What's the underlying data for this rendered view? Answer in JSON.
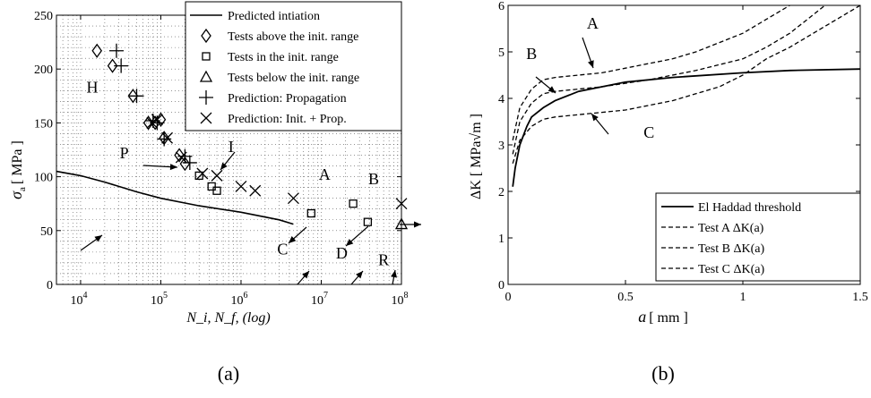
{
  "chart_data": [
    {
      "id": "a",
      "type": "scatter",
      "caption": "(a)",
      "xscale": "log",
      "xlim": [
        5000,
        100000000
      ],
      "ylim": [
        0,
        250
      ],
      "grid": true,
      "legend_position": "top-right",
      "ylabel_main": "σ",
      "ylabel_sub": "a",
      "ylabel_rest": "[ MPa ]",
      "xlabel": "N_i, N_f, (log)",
      "xtick_values": [
        10000,
        100000,
        1000000,
        10000000,
        100000000
      ],
      "xticks": [
        {
          "base": "10",
          "exp": "4"
        },
        {
          "base": "10",
          "exp": "5"
        },
        {
          "base": "10",
          "exp": "6"
        },
        {
          "base": "10",
          "exp": "7"
        },
        {
          "base": "10",
          "exp": "8"
        }
      ],
      "yticks": [
        "0",
        "50",
        "100",
        "150",
        "200",
        "250"
      ],
      "ytick_values": [
        0,
        50,
        100,
        150,
        200,
        250
      ],
      "legend": [
        {
          "label": "Predicted intiation",
          "marker": "line"
        },
        {
          "label": "Tests above the init. range",
          "marker": "diamond"
        },
        {
          "label": "Tests in the init. range",
          "marker": "square"
        },
        {
          "label": "Tests below the init. range",
          "marker": "triangle"
        },
        {
          "label": "Prediction: Propagation",
          "marker": "plus"
        },
        {
          "label": "Prediction: Init. + Prop.",
          "marker": "cross"
        }
      ],
      "series": [
        {
          "label_ref": 0,
          "marker": "line",
          "points": [
            [
              5000,
              105
            ],
            [
              10000,
              101
            ],
            [
              20000,
              95
            ],
            [
              50000,
              86
            ],
            [
              100000,
              80
            ],
            [
              300000,
              73
            ],
            [
              1000000,
              67
            ],
            [
              3000000,
              60
            ],
            [
              4500000,
              56
            ]
          ]
        },
        {
          "label_ref": 1,
          "marker": "diamond",
          "points": [
            [
              16000,
              217
            ],
            [
              25000,
              203
            ],
            [
              45000,
              175
            ],
            [
              70000,
              150
            ],
            [
              85000,
              150
            ],
            [
              100000,
              153
            ],
            [
              110000,
              136
            ],
            [
              170000,
              120
            ],
            [
              200000,
              112
            ]
          ]
        },
        {
          "label_ref": 2,
          "marker": "square",
          "points": [
            [
              300000,
              101
            ],
            [
              430000,
              91
            ],
            [
              500000,
              87
            ],
            [
              7500000,
              66
            ],
            [
              25000000,
              75
            ],
            [
              38000000,
              58
            ]
          ]
        },
        {
          "label_ref": 3,
          "marker": "triangle",
          "points": [
            [
              100000000,
              56
            ]
          ]
        },
        {
          "label_ref": 4,
          "marker": "plus",
          "points": [
            [
              28000,
              217
            ],
            [
              32000,
              203
            ],
            [
              50000,
              175
            ],
            [
              80000,
              152
            ],
            [
              90000,
              150
            ],
            [
              110000,
              135
            ],
            [
              200000,
              119
            ],
            [
              230000,
              113
            ]
          ]
        },
        {
          "label_ref": 5,
          "marker": "cross",
          "points": [
            [
              78000,
              150
            ],
            [
              90000,
              153
            ],
            [
              120000,
              136
            ],
            [
              180000,
              118
            ],
            [
              330000,
              103
            ],
            [
              500000,
              101
            ],
            [
              1000000,
              91
            ],
            [
              1500000,
              87
            ],
            [
              4500000,
              80
            ],
            [
              100000000,
              75
            ]
          ]
        }
      ],
      "annotations": [
        {
          "text": "H",
          "x": 14000,
          "y": 178
        },
        {
          "text": "I",
          "x": 750000,
          "y": 123
        },
        {
          "text": "P",
          "x": 35000,
          "y": 117
        },
        {
          "text": "A",
          "x": 11000000,
          "y": 97
        },
        {
          "text": "B",
          "x": 45000000,
          "y": 93
        },
        {
          "text": "C",
          "x": 3300000,
          "y": 28
        },
        {
          "text": "D",
          "x": 18000000,
          "y": 24
        },
        {
          "text": "R",
          "x": 60000000,
          "y": 18
        }
      ]
    },
    {
      "id": "b",
      "type": "line",
      "caption": "(b)",
      "xlim": [
        0,
        1.5
      ],
      "ylim": [
        0,
        6
      ],
      "grid": false,
      "legend_position": "bottom-right",
      "ylabel": "ΔK [ MPa√m ]",
      "xlabel_var": "a",
      "xlabel_unit": "[ mm ]",
      "xticks": [
        "0",
        "0.5",
        "1",
        "1.5"
      ],
      "xtick_values": [
        0,
        0.5,
        1,
        1.5
      ],
      "yticks": [
        "0",
        "1",
        "2",
        "3",
        "4",
        "5",
        "6"
      ],
      "ytick_values": [
        0,
        1,
        2,
        3,
        4,
        5,
        6
      ],
      "legend": [
        {
          "label": "El Haddad threshold",
          "style": "solid"
        },
        {
          "label": "Test A ΔK(a)",
          "style": "dashed"
        },
        {
          "label": "Test B ΔK(a)",
          "style": "dashed"
        },
        {
          "label": "Test C ΔK(a)",
          "style": "dashed"
        }
      ],
      "series": [
        {
          "label_ref": 0,
          "style": "solid",
          "points": [
            [
              0.02,
              2.1
            ],
            [
              0.03,
              2.5
            ],
            [
              0.05,
              3.0
            ],
            [
              0.08,
              3.4
            ],
            [
              0.1,
              3.6
            ],
            [
              0.15,
              3.8
            ],
            [
              0.2,
              3.95
            ],
            [
              0.3,
              4.15
            ],
            [
              0.4,
              4.25
            ],
            [
              0.5,
              4.35
            ],
            [
              0.7,
              4.45
            ],
            [
              1.0,
              4.55
            ],
            [
              1.2,
              4.6
            ],
            [
              1.5,
              4.63
            ]
          ]
        },
        {
          "label_ref": 1,
          "style": "dashed",
          "points": [
            [
              0.02,
              3.1
            ],
            [
              0.05,
              3.8
            ],
            [
              0.1,
              4.2
            ],
            [
              0.15,
              4.4
            ],
            [
              0.2,
              4.45
            ],
            [
              0.3,
              4.5
            ],
            [
              0.4,
              4.55
            ],
            [
              0.5,
              4.65
            ],
            [
              0.6,
              4.75
            ],
            [
              0.7,
              4.85
            ],
            [
              0.8,
              5.0
            ],
            [
              0.9,
              5.2
            ],
            [
              1.0,
              5.4
            ],
            [
              1.1,
              5.7
            ],
            [
              1.2,
              6.0
            ]
          ]
        },
        {
          "label_ref": 2,
          "style": "dashed",
          "points": [
            [
              0.02,
              2.8
            ],
            [
              0.05,
              3.5
            ],
            [
              0.1,
              3.9
            ],
            [
              0.15,
              4.1
            ],
            [
              0.2,
              4.15
            ],
            [
              0.3,
              4.2
            ],
            [
              0.4,
              4.25
            ],
            [
              0.6,
              4.4
            ],
            [
              0.8,
              4.6
            ],
            [
              1.0,
              4.85
            ],
            [
              1.1,
              5.1
            ],
            [
              1.2,
              5.4
            ],
            [
              1.3,
              5.8
            ],
            [
              1.35,
              6.0
            ]
          ]
        },
        {
          "label_ref": 3,
          "style": "dashed",
          "points": [
            [
              0.02,
              2.6
            ],
            [
              0.05,
              3.1
            ],
            [
              0.1,
              3.4
            ],
            [
              0.15,
              3.55
            ],
            [
              0.2,
              3.6
            ],
            [
              0.3,
              3.65
            ],
            [
              0.4,
              3.7
            ],
            [
              0.5,
              3.75
            ],
            [
              0.6,
              3.85
            ],
            [
              0.7,
              3.95
            ],
            [
              0.8,
              4.1
            ],
            [
              0.9,
              4.25
            ],
            [
              1.0,
              4.5
            ],
            [
              1.1,
              4.85
            ],
            [
              1.2,
              5.1
            ],
            [
              1.3,
              5.4
            ],
            [
              1.4,
              5.7
            ],
            [
              1.5,
              6.0
            ]
          ]
        }
      ],
      "annotations": [
        {
          "text": "A",
          "x": 0.36,
          "y": 5.5
        },
        {
          "text": "B",
          "x": 0.1,
          "y": 4.85
        },
        {
          "text": "C",
          "x": 0.6,
          "y": 3.15
        }
      ]
    }
  ]
}
